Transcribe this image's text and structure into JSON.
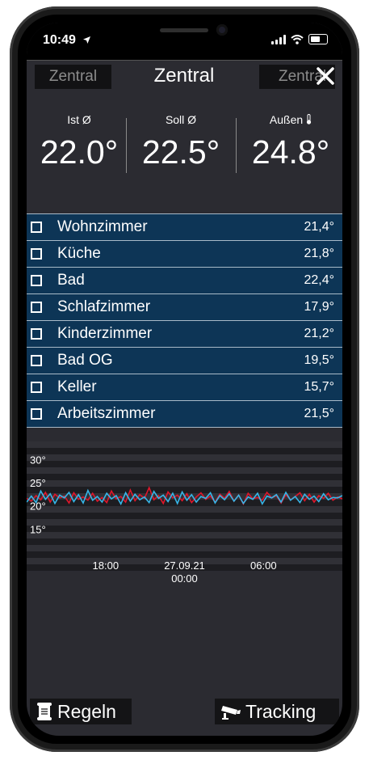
{
  "status_bar": {
    "time": "10:49"
  },
  "header": {
    "prev": "Zentral",
    "title": "Zentral",
    "next": "Zentral"
  },
  "temperatures": [
    {
      "label": "Ist Ø",
      "value": "22.0°"
    },
    {
      "label": "Soll Ø",
      "value": "22.5°"
    },
    {
      "label": "Außen",
      "value": "24.8°"
    }
  ],
  "rooms": [
    {
      "name": "Wohnzimmer",
      "temp": "21,4°"
    },
    {
      "name": "Küche",
      "temp": "21,8°"
    },
    {
      "name": "Bad",
      "temp": "22,4°"
    },
    {
      "name": "Schlafzimmer",
      "temp": "17,9°"
    },
    {
      "name": "Kinderzimmer",
      "temp": "21,2°"
    },
    {
      "name": "Bad OG",
      "temp": "19,5°"
    },
    {
      "name": "Keller",
      "temp": "15,7°"
    },
    {
      "name": "Arbeitszimmer",
      "temp": "21,5°"
    }
  ],
  "chart_data": {
    "type": "line",
    "y_ticks": [
      "30°",
      "25°",
      "20°",
      "15°"
    ],
    "ylim": [
      10,
      32
    ],
    "x_ticks": [
      {
        "label": "18:00",
        "sub": "",
        "x": 18
      },
      {
        "label": "27.09.21",
        "sub": "00:00",
        "x": 24
      },
      {
        "label": "06:00",
        "sub": "",
        "x": 30
      }
    ],
    "xlim": [
      12,
      36
    ],
    "series": [
      {
        "color": "#e0162b",
        "values": [
          21.8,
          21.2,
          22.4,
          21.5,
          23.1,
          21.0,
          22.7,
          21.9,
          22.3,
          20.8,
          23.0,
          21.6,
          22.1,
          21.4,
          22.9,
          21.2,
          22.0,
          20.9,
          23.4,
          21.7,
          22.2,
          21.0,
          23.6,
          21.3,
          22.6,
          21.8,
          24.1,
          21.5,
          22.4,
          20.7,
          23.2,
          21.9,
          22.5,
          21.3,
          22.8,
          20.9,
          22.1,
          23.0,
          21.6,
          22.3,
          21.0,
          22.7,
          21.8,
          23.3,
          21.2,
          22.5,
          20.6,
          22.9,
          21.7,
          22.0,
          21.4,
          23.1,
          21.9,
          22.4,
          20.8,
          22.6,
          21.5,
          22.2,
          23.0,
          21.3,
          22.7,
          21.0,
          22.4,
          21.8,
          22.9,
          21.4,
          22.1,
          21.7
        ]
      },
      {
        "color": "#37b6e8",
        "values": [
          21.0,
          22.3,
          20.9,
          23.4,
          21.6,
          22.8,
          20.7,
          22.5,
          21.9,
          23.1,
          21.1,
          22.6,
          20.8,
          23.5,
          21.4,
          22.2,
          21.0,
          22.9,
          21.7,
          22.4,
          20.6,
          23.0,
          21.2,
          22.7,
          21.5,
          22.1,
          20.9,
          23.3,
          21.8,
          22.5,
          21.1,
          22.9,
          20.7,
          23.2,
          21.4,
          22.6,
          21.0,
          22.2,
          21.8,
          23.0,
          20.8,
          22.4,
          21.5,
          22.8,
          21.2,
          22.5,
          20.7,
          22.1,
          21.6,
          22.9,
          20.6,
          22.3,
          21.9,
          22.6,
          21.0,
          23.1,
          21.4,
          22.2,
          20.9,
          22.7,
          21.6,
          22.3,
          21.1,
          22.8,
          21.5,
          22.0,
          21.9,
          22.4
        ]
      }
    ]
  },
  "buttons": {
    "rules": "Regeln",
    "tracking": "Tracking"
  }
}
